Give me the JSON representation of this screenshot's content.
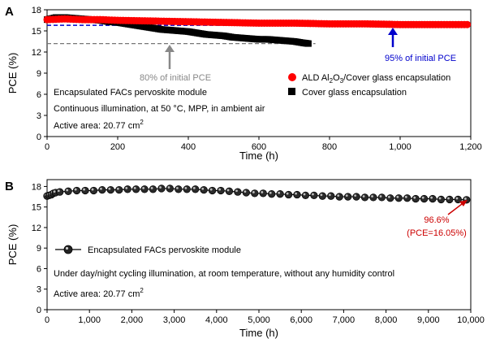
{
  "chart_data": [
    {
      "panel": "A",
      "type": "scatter",
      "xlabel": "Time (h)",
      "ylabel": "PCE (%)",
      "xlim": [
        0,
        1200
      ],
      "ylim": [
        0,
        18
      ],
      "xticks": [
        0,
        200,
        400,
        600,
        800,
        1000,
        1200
      ],
      "xtick_labels": [
        "0",
        "200",
        "400",
        "600",
        "800",
        "1,000",
        "1,200"
      ],
      "yticks": [
        0,
        3,
        6,
        9,
        12,
        15,
        18
      ],
      "series": [
        {
          "name_main": "ALD Al",
          "sub1": "2",
          "name_mid": "O",
          "sub2": "3",
          "name_tail": "/Cover glass encapsulation",
          "marker": "circle",
          "color": "#ff0000",
          "x": [
            0,
            50,
            100,
            150,
            200,
            300,
            400,
            500,
            600,
            700,
            800,
            900,
            1000,
            1100,
            1190
          ],
          "y": [
            16.6,
            16.7,
            16.6,
            16.6,
            16.5,
            16.4,
            16.3,
            16.2,
            16.1,
            16.1,
            16.0,
            16.0,
            15.9,
            15.9,
            15.9
          ]
        },
        {
          "name": "Cover glass encapsulation",
          "marker": "square",
          "color": "#000000",
          "x": [
            0,
            25,
            50,
            75,
            100,
            125,
            150,
            175,
            200,
            225,
            250,
            275,
            300,
            325,
            350,
            375,
            400,
            425,
            450,
            475,
            500,
            525,
            550,
            575,
            600,
            625,
            650,
            675,
            700,
            725,
            740
          ],
          "y": [
            16.6,
            16.9,
            16.9,
            16.8,
            16.7,
            16.6,
            16.5,
            16.3,
            16.2,
            16.0,
            15.8,
            15.6,
            15.4,
            15.2,
            15.1,
            15.0,
            14.9,
            14.7,
            14.5,
            14.4,
            14.3,
            14.1,
            14.0,
            13.9,
            13.8,
            13.8,
            13.7,
            13.6,
            13.5,
            13.3,
            13.2
          ]
        }
      ],
      "reference_lines": [
        {
          "y": 15.8,
          "color": "#0000cc",
          "style": "dashed"
        },
        {
          "y": 13.2,
          "color": "#777777",
          "style": "dashed"
        }
      ],
      "annotations": [
        {
          "text": "95% of initial PCE",
          "color": "#0000cc",
          "x": 980,
          "y": 15.8
        },
        {
          "text": "80% of initial PCE",
          "color": "#888888",
          "x": 345,
          "y": 13.2
        }
      ],
      "notes": [
        "Encapsulated FACs pervoskite module",
        "Continuous illumination, at 50 °C, MPP, in ambient air"
      ],
      "area_text": "Active area: 20.77 cm",
      "area_sup": "2"
    },
    {
      "panel": "B",
      "type": "line",
      "xlabel": "Time (h)",
      "ylabel": "PCE (%)",
      "xlim": [
        0,
        10000
      ],
      "ylim": [
        0,
        19
      ],
      "xticks": [
        0,
        1000,
        2000,
        3000,
        4000,
        5000,
        6000,
        7000,
        8000,
        9000,
        10000
      ],
      "xtick_labels": [
        "0",
        "1,000",
        "2,000",
        "3,000",
        "4,000",
        "5,000",
        "6,000",
        "7,000",
        "8,000",
        "9,000",
        "10,000"
      ],
      "yticks": [
        0,
        3,
        6,
        9,
        12,
        15,
        18
      ],
      "series": [
        {
          "name": "Encapsulated FACs pervoskite module",
          "marker": "sphere",
          "color": "#000000",
          "x": [
            0,
            50,
            100,
            150,
            200,
            300,
            500,
            700,
            900,
            1100,
            1300,
            1500,
            1700,
            1900,
            2100,
            2300,
            2500,
            2700,
            2900,
            3100,
            3300,
            3500,
            3700,
            3900,
            4100,
            4300,
            4500,
            4700,
            4900,
            5100,
            5300,
            5500,
            5700,
            5900,
            6100,
            6300,
            6500,
            6700,
            6900,
            7100,
            7300,
            7500,
            7700,
            7900,
            8100,
            8300,
            8500,
            8700,
            8900,
            9100,
            9300,
            9500,
            9700,
            9900
          ],
          "y": [
            16.6,
            16.7,
            16.8,
            17.0,
            17.1,
            17.2,
            17.3,
            17.4,
            17.4,
            17.4,
            17.5,
            17.5,
            17.5,
            17.6,
            17.6,
            17.6,
            17.6,
            17.7,
            17.7,
            17.6,
            17.6,
            17.6,
            17.5,
            17.4,
            17.4,
            17.3,
            17.2,
            17.1,
            17.0,
            17.0,
            16.9,
            16.9,
            16.8,
            16.8,
            16.7,
            16.7,
            16.6,
            16.6,
            16.5,
            16.5,
            16.5,
            16.4,
            16.4,
            16.4,
            16.3,
            16.3,
            16.3,
            16.2,
            16.2,
            16.2,
            16.1,
            16.1,
            16.1,
            16.05
          ]
        }
      ],
      "annotations": [
        {
          "text": "96.6%",
          "color": "#cc0000",
          "x": 9950,
          "y": 16.05
        },
        {
          "text": "(PCE=16.05%)",
          "color": "#cc0000",
          "x": 9950,
          "y": 16.05
        }
      ],
      "notes": [
        "Under day/night cycling illumination, at room temperature, without any humidity control"
      ],
      "area_text": "Active area: 20.77 cm",
      "area_sup": "2"
    }
  ]
}
